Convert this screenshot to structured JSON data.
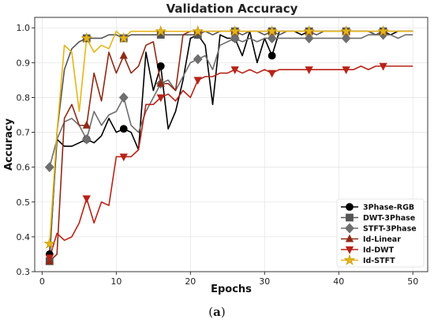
{
  "caption": {
    "open": "(",
    "letter": "a",
    "close": ")"
  },
  "chart_data": {
    "type": "line",
    "title": "Validation Accuracy",
    "xlabel": "Epochs",
    "ylabel": "Accuracy",
    "xlim": [
      -1,
      52
    ],
    "ylim": [
      0.3,
      1.03
    ],
    "xticks": [
      "0",
      "10",
      "20",
      "30",
      "40",
      "50"
    ],
    "xtick_values": [
      0,
      10,
      20,
      30,
      40,
      50
    ],
    "yticks": [
      "0.3",
      "0.4",
      "0.5",
      "0.6",
      "0.7",
      "0.8",
      "0.9",
      "1.0"
    ],
    "ytick_values": [
      0.3,
      0.4,
      0.5,
      0.6,
      0.7,
      0.8,
      0.9,
      1.0
    ],
    "grid": true,
    "legend_position": "bottom-right",
    "series": [
      {
        "name": "3Phase-RGB",
        "color": "#000000",
        "marker": "circle",
        "marker_every": 5,
        "values": [
          0.35,
          0.68,
          0.66,
          0.66,
          0.67,
          0.68,
          0.67,
          0.69,
          0.74,
          0.7,
          0.71,
          0.7,
          0.65,
          0.93,
          0.82,
          0.89,
          0.71,
          0.76,
          0.85,
          0.97,
          0.98,
          0.95,
          0.78,
          0.98,
          0.97,
          0.97,
          0.92,
          0.99,
          0.9,
          0.97,
          0.92,
          0.99,
          0.99,
          0.99,
          0.98,
          0.99,
          0.99,
          0.99,
          0.99,
          0.99,
          0.99,
          0.99,
          0.99,
          0.99,
          0.98,
          0.99,
          0.98,
          0.99,
          0.99,
          0.99
        ]
      },
      {
        "name": "DWT-3Phase",
        "color": "#555555",
        "marker": "square",
        "marker_every": 5,
        "values": [
          0.33,
          0.7,
          0.88,
          0.94,
          0.96,
          0.97,
          0.97,
          0.97,
          0.98,
          0.98,
          0.97,
          0.98,
          0.98,
          0.98,
          0.98,
          0.98,
          0.98,
          0.98,
          0.98,
          0.98,
          0.98,
          0.99,
          0.98,
          0.99,
          0.99,
          0.99,
          0.98,
          0.99,
          0.99,
          0.98,
          0.99,
          0.98,
          0.99,
          0.99,
          0.99,
          0.99,
          0.98,
          0.99,
          0.99,
          0.99,
          0.99,
          0.99,
          0.99,
          0.99,
          0.98,
          0.99,
          0.99,
          0.99,
          0.99,
          0.99
        ]
      },
      {
        "name": "STFT-3Phase",
        "color": "#6e6e6e",
        "marker": "diamond",
        "marker_every": 5,
        "values": [
          0.6,
          0.68,
          0.73,
          0.74,
          0.72,
          0.68,
          0.76,
          0.72,
          0.75,
          0.76,
          0.8,
          0.72,
          0.7,
          0.76,
          0.8,
          0.84,
          0.85,
          0.82,
          0.86,
          0.9,
          0.91,
          0.92,
          0.88,
          0.95,
          0.96,
          0.97,
          0.96,
          0.97,
          0.96,
          0.97,
          0.97,
          0.97,
          0.97,
          0.97,
          0.97,
          0.97,
          0.97,
          0.97,
          0.97,
          0.97,
          0.97,
          0.97,
          0.97,
          0.98,
          0.98,
          0.98,
          0.98,
          0.97,
          0.98,
          0.98
        ]
      },
      {
        "name": "Id-Linear",
        "color": "#8e2a16",
        "marker": "triangle-up",
        "marker_every": 5,
        "values": [
          0.33,
          0.35,
          0.74,
          0.78,
          0.72,
          0.72,
          0.87,
          0.79,
          0.93,
          0.87,
          0.92,
          0.87,
          0.89,
          0.95,
          0.96,
          0.84,
          0.84,
          0.82,
          0.98,
          0.99,
          0.99,
          0.99,
          0.99,
          0.99,
          0.99,
          0.99,
          0.99,
          0.99,
          0.99,
          0.99,
          0.99,
          0.99,
          0.99,
          0.99,
          0.99,
          0.99,
          0.99,
          0.99,
          0.99,
          0.99,
          0.99,
          0.99,
          0.99,
          0.99,
          0.99,
          0.99,
          0.99,
          0.99,
          0.99,
          0.99
        ]
      },
      {
        "name": "Id-DWT",
        "color": "#b82318",
        "marker": "triangle-down",
        "marker_every": 5,
        "values": [
          0.34,
          0.41,
          0.39,
          0.4,
          0.44,
          0.51,
          0.44,
          0.5,
          0.49,
          0.63,
          0.63,
          0.63,
          0.65,
          0.78,
          0.78,
          0.8,
          0.81,
          0.79,
          0.82,
          0.8,
          0.85,
          0.86,
          0.86,
          0.87,
          0.87,
          0.88,
          0.87,
          0.88,
          0.87,
          0.88,
          0.87,
          0.88,
          0.88,
          0.88,
          0.88,
          0.88,
          0.88,
          0.88,
          0.88,
          0.88,
          0.88,
          0.88,
          0.89,
          0.88,
          0.89,
          0.89,
          0.89,
          0.89,
          0.89,
          0.89
        ]
      },
      {
        "name": "Id-STFT",
        "color": "#e5b51a",
        "marker": "star",
        "marker_every": 5,
        "values": [
          0.38,
          0.7,
          0.95,
          0.93,
          0.76,
          0.97,
          0.93,
          0.95,
          0.94,
          0.99,
          0.97,
          0.99,
          0.99,
          0.99,
          0.99,
          0.99,
          0.99,
          0.99,
          0.99,
          0.99,
          0.99,
          0.99,
          0.99,
          0.99,
          0.99,
          0.99,
          0.99,
          0.99,
          0.99,
          0.99,
          0.99,
          0.99,
          0.99,
          0.99,
          0.99,
          0.99,
          0.99,
          0.99,
          0.99,
          0.99,
          0.99,
          0.99,
          0.99,
          0.99,
          0.99,
          0.99,
          0.99,
          0.99,
          0.99,
          0.99
        ]
      }
    ]
  }
}
